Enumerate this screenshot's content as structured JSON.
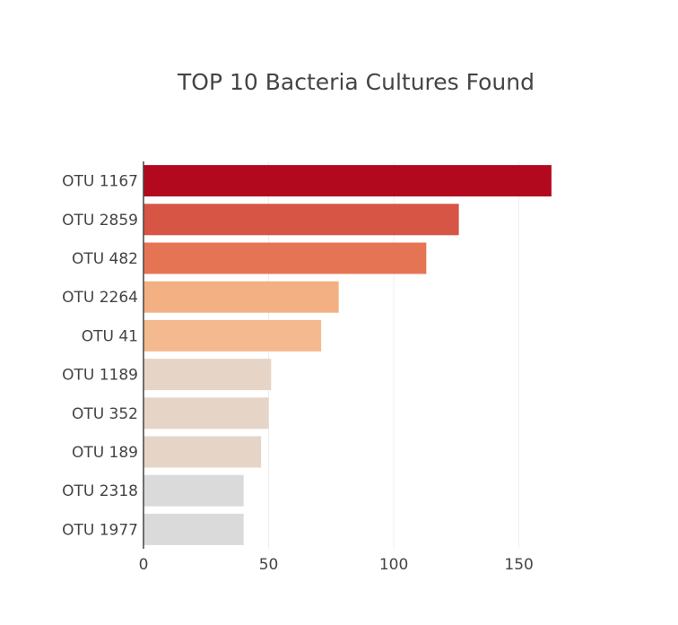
{
  "chart_data": {
    "type": "bar",
    "orientation": "horizontal",
    "title": "TOP 10 Bacteria Cultures Found",
    "xlabel": "",
    "ylabel": "",
    "categories": [
      "OTU 1167",
      "OTU 2859",
      "OTU 482",
      "OTU 2264",
      "OTU 41",
      "OTU 1189",
      "OTU 352",
      "OTU 189",
      "OTU 2318",
      "OTU 1977"
    ],
    "values": [
      163,
      126,
      113,
      78,
      71,
      51,
      50,
      47,
      40,
      40
    ],
    "colors": [
      "#b2091f",
      "#d65545",
      "#e57455",
      "#f3b083",
      "#f4b98f",
      "#e6d5c7",
      "#e6d5c7",
      "#e6d5c7",
      "#dadada",
      "#dadada"
    ],
    "xlim": [
      0,
      172
    ],
    "xticks": [
      0,
      50,
      100,
      150
    ],
    "grid": true,
    "legend": "none"
  }
}
